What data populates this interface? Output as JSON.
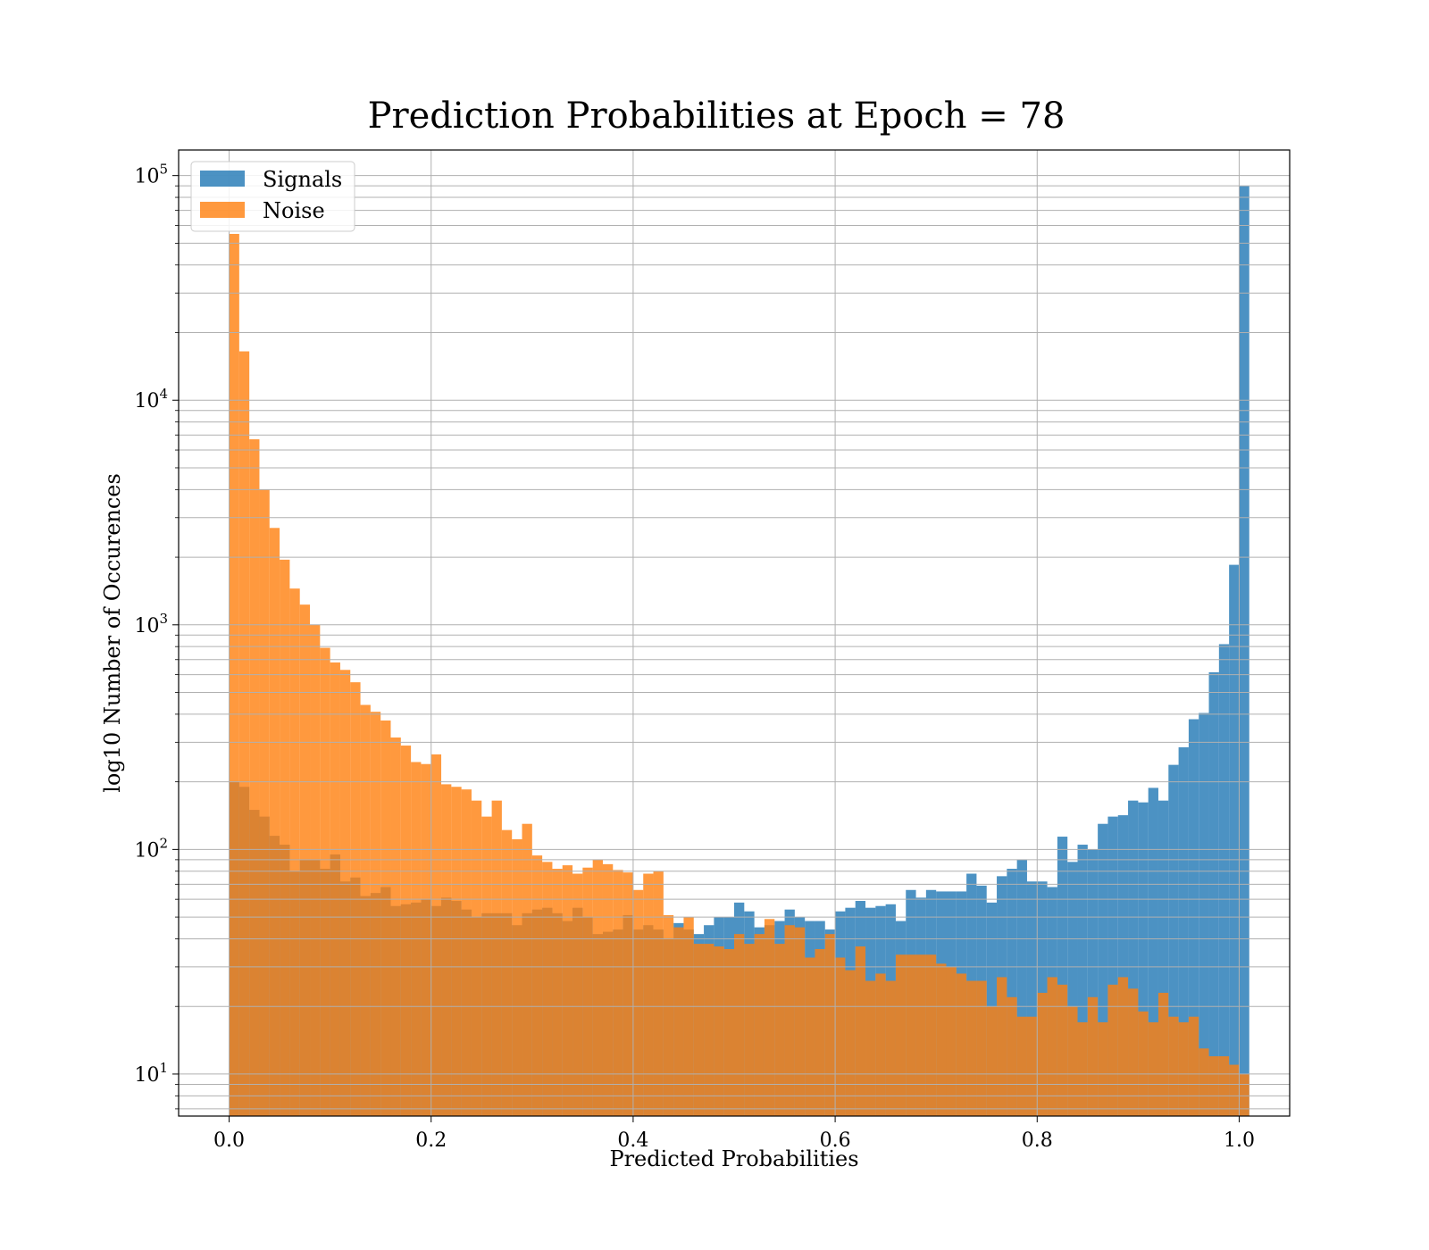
{
  "chart_data": {
    "type": "histogram",
    "title": "Prediction Probabilities at Epoch = 78",
    "xlabel": "Predicted Probabilities",
    "ylabel": "log10 Number of Occurences",
    "x_scale": "linear",
    "y_scale": "log",
    "xlim": [
      -0.05,
      1.05
    ],
    "ylim": [
      6.5,
      130000
    ],
    "x_ticks": [
      0.0,
      0.2,
      0.4,
      0.6,
      0.8,
      1.0
    ],
    "x_tick_labels": [
      "0.0",
      "0.2",
      "0.4",
      "0.6",
      "0.8",
      "1.0"
    ],
    "y_ticks": [
      10,
      100,
      1000,
      10000,
      100000
    ],
    "y_tick_labels": [
      {
        "base": "10",
        "exp": "1"
      },
      {
        "base": "10",
        "exp": "2"
      },
      {
        "base": "10",
        "exp": "3"
      },
      {
        "base": "10",
        "exp": "4"
      },
      {
        "base": "10",
        "exp": "5"
      }
    ],
    "grid": true,
    "legend_position": "top-left",
    "bin_start": 0.0,
    "bin_width": 0.01,
    "series": [
      {
        "name": "Signals",
        "color": "#1f77b4",
        "opacity": 0.8,
        "values": [
          200,
          190,
          150,
          140,
          115,
          105,
          80,
          90,
          90,
          82,
          95,
          72,
          75,
          62,
          64,
          68,
          56,
          57,
          58,
          60,
          56,
          61,
          59,
          54,
          50,
          52,
          52,
          52,
          46,
          52,
          54,
          55,
          52,
          48,
          55,
          50,
          42,
          43,
          44,
          51,
          44,
          46,
          44,
          40,
          47,
          44,
          42,
          46,
          50,
          50,
          58,
          53,
          45,
          46,
          48,
          54,
          50,
          48,
          48,
          44,
          53,
          55,
          59,
          55,
          56,
          57,
          48,
          66,
          61,
          66,
          65,
          65,
          65,
          78,
          69,
          58,
          76,
          82,
          90,
          72,
          72,
          68,
          114,
          88,
          105,
          100,
          130,
          140,
          142,
          165,
          162,
          188,
          165,
          238,
          285,
          380,
          405,
          615,
          820,
          1850,
          90000
        ]
      },
      {
        "name": "Noise",
        "color": "#ff7f0e",
        "opacity": 0.8,
        "values": [
          55000,
          16500,
          6700,
          4000,
          2700,
          1950,
          1450,
          1230,
          1000,
          790,
          680,
          630,
          555,
          440,
          410,
          375,
          315,
          290,
          245,
          240,
          265,
          195,
          190,
          185,
          165,
          140,
          165,
          122,
          111,
          130,
          94,
          88,
          82,
          85,
          78,
          83,
          90,
          86,
          81,
          79,
          66,
          78,
          80,
          51,
          45,
          50,
          38,
          38,
          37,
          36,
          42,
          38,
          42,
          49,
          38,
          46,
          45,
          33,
          36,
          42,
          33,
          29,
          37,
          26,
          28,
          26,
          34,
          34,
          34,
          34,
          31,
          30,
          28,
          26,
          26,
          20,
          27,
          22,
          18,
          18,
          23,
          27,
          25,
          20,
          17,
          22,
          17,
          25,
          27,
          24,
          19,
          17,
          23,
          18,
          17,
          18,
          13,
          12,
          12,
          11,
          10
        ]
      }
    ]
  }
}
